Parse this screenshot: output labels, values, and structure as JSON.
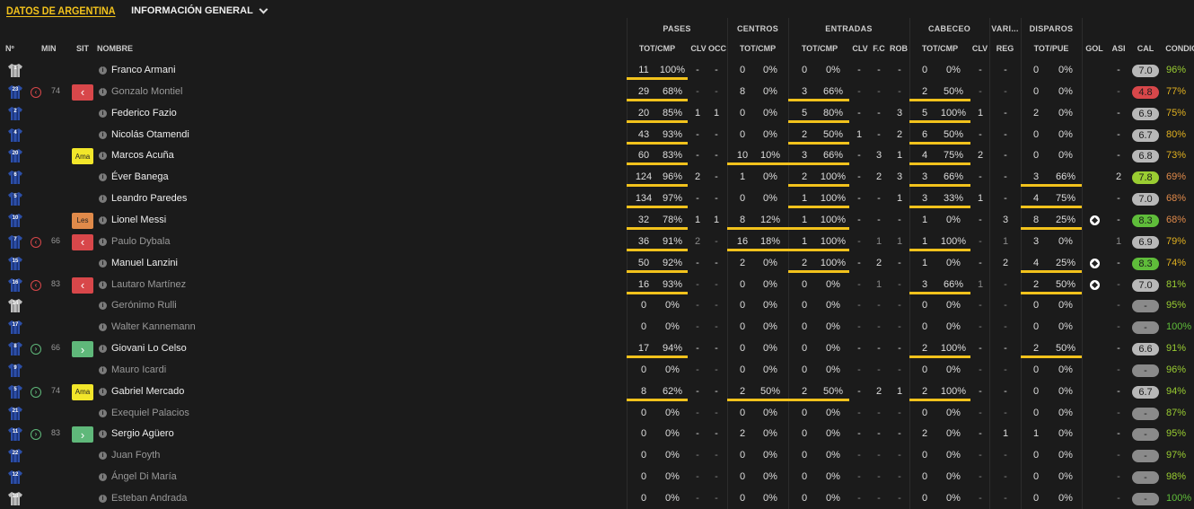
{
  "header": {
    "title": "DATOS DE ARGENTINA",
    "view": "INFORMACIÓN GENERAL"
  },
  "groups": [
    "PASES",
    "CENTROS",
    "ENTRADAS",
    "CABECEO",
    "VARI...",
    "DISPAROS"
  ],
  "columns": [
    "Nº",
    "MIN",
    "SIT",
    "NOMBRE",
    "TOT/CMP",
    "CLV",
    "OCC",
    "TOT/CMP",
    "TOT/CMP",
    "CLV",
    "F.C",
    "ROB",
    "TOT/CMP",
    "CLV",
    "REG",
    "TOT/PUE",
    "GOL",
    "ASI",
    "CAL",
    "CONDIC"
  ],
  "colors": {
    "accent": "#f2c21c",
    "sub_out": "#d8474a",
    "sub_in": "#5fb87a",
    "yellow_card": "#f2e62a",
    "injury": "#e08a4a"
  },
  "players": [
    {
      "num": "1",
      "kit": "gk",
      "name": "Franco Armani",
      "dim": false,
      "sub": "",
      "min": "",
      "sit": "",
      "pases": [
        "11",
        "100%"
      ],
      "pases_clv": "-",
      "pases_occ": "-",
      "cent": [
        "0",
        "0%"
      ],
      "ent": [
        "0",
        "0%"
      ],
      "ent_clv": "-",
      "ent_fc": "-",
      "ent_rob": "-",
      "cab": [
        "0",
        "0%"
      ],
      "cab_clv": "-",
      "reg": "-",
      "disp": [
        "0",
        "0%"
      ],
      "gol": "",
      "asi": "-",
      "cal": "7.0",
      "cal_color": "#b8b8b8",
      "cond": "96%",
      "cond_color": "#9acd32",
      "bars": {
        "pases": 1,
        "cent": 0,
        "ent": 0,
        "cab": 0,
        "disp": 0
      }
    },
    {
      "num": "23",
      "kit": "out",
      "name": "Gonzalo Montiel",
      "dim": true,
      "sub": "out",
      "min": "74",
      "sit": "out",
      "pases": [
        "29",
        "68%"
      ],
      "pases_clv": "-",
      "pases_occ": "-",
      "cent": [
        "8",
        "0%"
      ],
      "ent": [
        "3",
        "66%"
      ],
      "ent_clv": "-",
      "ent_fc": "-",
      "ent_rob": "-",
      "cab": [
        "2",
        "50%"
      ],
      "cab_clv": "-",
      "reg": "-",
      "disp": [
        "0",
        "0%"
      ],
      "gol": "",
      "asi": "-",
      "cal": "4.8",
      "cal_color": "#d8474a",
      "cond": "77%",
      "cond_color": "#e0b020",
      "bars": {
        "pases": 1,
        "cent": 0,
        "ent": 1,
        "cab": 1,
        "disp": 0
      }
    },
    {
      "num": "2",
      "kit": "out",
      "name": "Federico Fazio",
      "dim": false,
      "sub": "",
      "min": "",
      "sit": "",
      "pases": [
        "20",
        "85%"
      ],
      "pases_clv": "1",
      "pases_occ": "1",
      "cent": [
        "0",
        "0%"
      ],
      "ent": [
        "5",
        "80%"
      ],
      "ent_clv": "-",
      "ent_fc": "-",
      "ent_rob": "3",
      "cab": [
        "5",
        "100%"
      ],
      "cab_clv": "1",
      "reg": "-",
      "disp": [
        "2",
        "0%"
      ],
      "gol": "",
      "asi": "-",
      "cal": "6.9",
      "cal_color": "#b8b8b8",
      "cond": "75%",
      "cond_color": "#e0b020",
      "bars": {
        "pases": 1,
        "cent": 0,
        "ent": 1,
        "cab": 1,
        "disp": 0
      }
    },
    {
      "num": "4",
      "kit": "out",
      "name": "Nicolás Otamendi",
      "dim": false,
      "sub": "",
      "min": "",
      "sit": "",
      "pases": [
        "43",
        "93%"
      ],
      "pases_clv": "-",
      "pases_occ": "-",
      "cent": [
        "0",
        "0%"
      ],
      "ent": [
        "2",
        "50%"
      ],
      "ent_clv": "1",
      "ent_fc": "-",
      "ent_rob": "2",
      "cab": [
        "6",
        "50%"
      ],
      "cab_clv": "-",
      "reg": "-",
      "disp": [
        "0",
        "0%"
      ],
      "gol": "",
      "asi": "-",
      "cal": "6.7",
      "cal_color": "#b8b8b8",
      "cond": "80%",
      "cond_color": "#e0b020",
      "bars": {
        "pases": 1,
        "cent": 0,
        "ent": 1,
        "cab": 1,
        "disp": 0
      }
    },
    {
      "num": "20",
      "kit": "out",
      "name": "Marcos Acuña",
      "dim": false,
      "sub": "",
      "min": "",
      "sit": "ama",
      "sit_label": "Ama",
      "pases": [
        "60",
        "83%"
      ],
      "pases_clv": "-",
      "pases_occ": "-",
      "cent": [
        "10",
        "10%"
      ],
      "ent": [
        "3",
        "66%"
      ],
      "ent_clv": "-",
      "ent_fc": "3",
      "ent_rob": "1",
      "cab": [
        "4",
        "75%"
      ],
      "cab_clv": "2",
      "reg": "-",
      "disp": [
        "0",
        "0%"
      ],
      "gol": "",
      "asi": "-",
      "cal": "6.8",
      "cal_color": "#b8b8b8",
      "cond": "73%",
      "cond_color": "#e0b020",
      "bars": {
        "pases": 1,
        "cent": 1,
        "ent": 1,
        "cab": 1,
        "disp": 0
      }
    },
    {
      "num": "6",
      "kit": "out",
      "name": "Éver Banega",
      "dim": false,
      "sub": "",
      "min": "",
      "sit": "",
      "pases": [
        "124",
        "96%"
      ],
      "pases_clv": "2",
      "pases_occ": "-",
      "cent": [
        "1",
        "0%"
      ],
      "ent": [
        "2",
        "100%"
      ],
      "ent_clv": "-",
      "ent_fc": "2",
      "ent_rob": "3",
      "cab": [
        "3",
        "66%"
      ],
      "cab_clv": "-",
      "reg": "-",
      "disp": [
        "3",
        "66%"
      ],
      "gol": "",
      "asi": "2",
      "cal": "7.8",
      "cal_color": "#9acd32",
      "cond": "69%",
      "cond_color": "#e08a4a",
      "bars": {
        "pases": 1,
        "cent": 0,
        "ent": 1,
        "cab": 1,
        "disp": 1
      }
    },
    {
      "num": "5",
      "kit": "out",
      "name": "Leandro Paredes",
      "dim": false,
      "sub": "",
      "min": "",
      "sit": "",
      "pases": [
        "134",
        "97%"
      ],
      "pases_clv": "-",
      "pases_occ": "-",
      "cent": [
        "0",
        "0%"
      ],
      "ent": [
        "1",
        "100%"
      ],
      "ent_clv": "-",
      "ent_fc": "-",
      "ent_rob": "1",
      "cab": [
        "3",
        "33%"
      ],
      "cab_clv": "1",
      "reg": "-",
      "disp": [
        "4",
        "75%"
      ],
      "gol": "",
      "asi": "-",
      "cal": "7.0",
      "cal_color": "#b8b8b8",
      "cond": "68%",
      "cond_color": "#e08a4a",
      "bars": {
        "pases": 1,
        "cent": 0,
        "ent": 1,
        "cab": 1,
        "disp": 1
      }
    },
    {
      "num": "10",
      "kit": "out",
      "name": "Lionel Messi",
      "dim": false,
      "sub": "",
      "min": "",
      "sit": "les",
      "sit_label": "Les",
      "pases": [
        "32",
        "78%"
      ],
      "pases_clv": "1",
      "pases_occ": "1",
      "cent": [
        "8",
        "12%"
      ],
      "ent": [
        "1",
        "100%"
      ],
      "ent_clv": "-",
      "ent_fc": "-",
      "ent_rob": "-",
      "cab": [
        "1",
        "0%"
      ],
      "cab_clv": "-",
      "reg": "3",
      "disp": [
        "8",
        "25%"
      ],
      "gol": "ball",
      "asi": "-",
      "cal": "8.3",
      "cal_color": "#5fbd3a",
      "cond": "68%",
      "cond_color": "#e08a4a",
      "bars": {
        "pases": 1,
        "cent": 1,
        "ent": 1,
        "cab": 0,
        "disp": 1
      }
    },
    {
      "num": "7",
      "kit": "out",
      "name": "Paulo Dybala",
      "dim": true,
      "sub": "out",
      "min": "66",
      "sit": "out",
      "pases": [
        "36",
        "91%"
      ],
      "pases_clv": "2",
      "pases_occ": "-",
      "cent": [
        "16",
        "18%"
      ],
      "ent": [
        "1",
        "100%"
      ],
      "ent_clv": "-",
      "ent_fc": "1",
      "ent_rob": "1",
      "cab": [
        "1",
        "100%"
      ],
      "cab_clv": "-",
      "reg": "1",
      "disp": [
        "3",
        "0%"
      ],
      "gol": "",
      "asi": "1",
      "cal": "6.9",
      "cal_color": "#b8b8b8",
      "cond": "79%",
      "cond_color": "#e0b020",
      "bars": {
        "pases": 1,
        "cent": 1,
        "ent": 1,
        "cab": 1,
        "disp": 0
      }
    },
    {
      "num": "15",
      "kit": "out",
      "name": "Manuel Lanzini",
      "dim": false,
      "sub": "",
      "min": "",
      "sit": "",
      "pases": [
        "50",
        "92%"
      ],
      "pases_clv": "-",
      "pases_occ": "-",
      "cent": [
        "2",
        "0%"
      ],
      "ent": [
        "2",
        "100%"
      ],
      "ent_clv": "-",
      "ent_fc": "2",
      "ent_rob": "-",
      "cab": [
        "1",
        "0%"
      ],
      "cab_clv": "-",
      "reg": "2",
      "disp": [
        "4",
        "25%"
      ],
      "gol": "ball",
      "asi": "-",
      "cal": "8.3",
      "cal_color": "#5fbd3a",
      "cond": "74%",
      "cond_color": "#e0b020",
      "bars": {
        "pases": 1,
        "cent": 0,
        "ent": 1,
        "cab": 0,
        "disp": 1
      }
    },
    {
      "num": "16",
      "kit": "out",
      "name": "Lautaro Martínez",
      "dim": true,
      "sub": "out",
      "min": "83",
      "sit": "out",
      "pases": [
        "16",
        "93%"
      ],
      "pases_clv": "-",
      "pases_occ": "-",
      "cent": [
        "0",
        "0%"
      ],
      "ent": [
        "0",
        "0%"
      ],
      "ent_clv": "-",
      "ent_fc": "1",
      "ent_rob": "-",
      "cab": [
        "3",
        "66%"
      ],
      "cab_clv": "1",
      "reg": "-",
      "disp": [
        "2",
        "50%"
      ],
      "gol": "ball",
      "asi": "-",
      "cal": "7.0",
      "cal_color": "#b8b8b8",
      "cond": "81%",
      "cond_color": "#9acd32",
      "bars": {
        "pases": 1,
        "cent": 0,
        "ent": 0,
        "cab": 1,
        "disp": 1
      }
    },
    {
      "num": "14",
      "kit": "gk",
      "name": "Gerónimo Rulli",
      "dim": true,
      "sub": "",
      "min": "",
      "sit": "",
      "pases": [
        "0",
        "0%"
      ],
      "pases_clv": "-",
      "pases_occ": "-",
      "cent": [
        "0",
        "0%"
      ],
      "ent": [
        "0",
        "0%"
      ],
      "ent_clv": "-",
      "ent_fc": "-",
      "ent_rob": "-",
      "cab": [
        "0",
        "0%"
      ],
      "cab_clv": "-",
      "reg": "-",
      "disp": [
        "0",
        "0%"
      ],
      "gol": "",
      "asi": "-",
      "cal": "-",
      "cal_color": "#8a8a8a",
      "cond": "95%",
      "cond_color": "#9acd32",
      "bars": {
        "pases": 0,
        "cent": 0,
        "ent": 0,
        "cab": 0,
        "disp": 0
      }
    },
    {
      "num": "17",
      "kit": "out",
      "name": "Walter Kannemann",
      "dim": true,
      "sub": "",
      "min": "",
      "sit": "",
      "pases": [
        "0",
        "0%"
      ],
      "pases_clv": "-",
      "pases_occ": "-",
      "cent": [
        "0",
        "0%"
      ],
      "ent": [
        "0",
        "0%"
      ],
      "ent_clv": "-",
      "ent_fc": "-",
      "ent_rob": "-",
      "cab": [
        "0",
        "0%"
      ],
      "cab_clv": "-",
      "reg": "-",
      "disp": [
        "0",
        "0%"
      ],
      "gol": "",
      "asi": "-",
      "cal": "-",
      "cal_color": "#8a8a8a",
      "cond": "100%",
      "cond_color": "#5fbd3a",
      "bars": {
        "pases": 0,
        "cent": 0,
        "ent": 0,
        "cab": 0,
        "disp": 0
      }
    },
    {
      "num": "8",
      "kit": "out",
      "name": "Giovani Lo Celso",
      "dim": false,
      "sub": "in",
      "min": "66",
      "sit": "in",
      "pases": [
        "17",
        "94%"
      ],
      "pases_clv": "-",
      "pases_occ": "-",
      "cent": [
        "0",
        "0%"
      ],
      "ent": [
        "0",
        "0%"
      ],
      "ent_clv": "-",
      "ent_fc": "-",
      "ent_rob": "-",
      "cab": [
        "2",
        "100%"
      ],
      "cab_clv": "-",
      "reg": "-",
      "disp": [
        "2",
        "50%"
      ],
      "gol": "",
      "asi": "-",
      "cal": "6.6",
      "cal_color": "#b8b8b8",
      "cond": "91%",
      "cond_color": "#9acd32",
      "bars": {
        "pases": 1,
        "cent": 0,
        "ent": 0,
        "cab": 1,
        "disp": 1
      }
    },
    {
      "num": "9",
      "kit": "out",
      "name": "Mauro Icardi",
      "dim": true,
      "sub": "",
      "min": "",
      "sit": "",
      "pases": [
        "0",
        "0%"
      ],
      "pases_clv": "-",
      "pases_occ": "-",
      "cent": [
        "0",
        "0%"
      ],
      "ent": [
        "0",
        "0%"
      ],
      "ent_clv": "-",
      "ent_fc": "-",
      "ent_rob": "-",
      "cab": [
        "0",
        "0%"
      ],
      "cab_clv": "-",
      "reg": "-",
      "disp": [
        "0",
        "0%"
      ],
      "gol": "",
      "asi": "-",
      "cal": "-",
      "cal_color": "#8a8a8a",
      "cond": "96%",
      "cond_color": "#9acd32",
      "bars": {
        "pases": 0,
        "cent": 0,
        "ent": 0,
        "cab": 0,
        "disp": 0
      }
    },
    {
      "num": "5",
      "kit": "out",
      "name": "Gabriel Mercado",
      "dim": false,
      "sub": "in",
      "min": "74",
      "sit": "ama",
      "sit_label": "Ama",
      "pases": [
        "8",
        "62%"
      ],
      "pases_clv": "-",
      "pases_occ": "-",
      "cent": [
        "2",
        "50%"
      ],
      "ent": [
        "2",
        "50%"
      ],
      "ent_clv": "-",
      "ent_fc": "2",
      "ent_rob": "1",
      "cab": [
        "2",
        "100%"
      ],
      "cab_clv": "-",
      "reg": "-",
      "disp": [
        "0",
        "0%"
      ],
      "gol": "",
      "asi": "-",
      "cal": "6.7",
      "cal_color": "#b8b8b8",
      "cond": "94%",
      "cond_color": "#9acd32",
      "bars": {
        "pases": 1,
        "cent": 1,
        "ent": 1,
        "cab": 1,
        "disp": 0
      }
    },
    {
      "num": "21",
      "kit": "out",
      "name": "Exequiel Palacios",
      "dim": true,
      "sub": "",
      "min": "",
      "sit": "",
      "pases": [
        "0",
        "0%"
      ],
      "pases_clv": "-",
      "pases_occ": "-",
      "cent": [
        "0",
        "0%"
      ],
      "ent": [
        "0",
        "0%"
      ],
      "ent_clv": "-",
      "ent_fc": "-",
      "ent_rob": "-",
      "cab": [
        "0",
        "0%"
      ],
      "cab_clv": "-",
      "reg": "-",
      "disp": [
        "0",
        "0%"
      ],
      "gol": "",
      "asi": "-",
      "cal": "-",
      "cal_color": "#8a8a8a",
      "cond": "87%",
      "cond_color": "#9acd32",
      "bars": {
        "pases": 0,
        "cent": 0,
        "ent": 0,
        "cab": 0,
        "disp": 0
      }
    },
    {
      "num": "11",
      "kit": "out",
      "name": "Sergio Agüero",
      "dim": false,
      "sub": "in",
      "min": "83",
      "sit": "in",
      "pases": [
        "0",
        "0%"
      ],
      "pases_clv": "-",
      "pases_occ": "-",
      "cent": [
        "2",
        "0%"
      ],
      "ent": [
        "0",
        "0%"
      ],
      "ent_clv": "-",
      "ent_fc": "-",
      "ent_rob": "-",
      "cab": [
        "2",
        "0%"
      ],
      "cab_clv": "-",
      "reg": "1",
      "disp": [
        "1",
        "0%"
      ],
      "gol": "",
      "asi": "-",
      "cal": "-",
      "cal_color": "#8a8a8a",
      "cond": "95%",
      "cond_color": "#9acd32",
      "bars": {
        "pases": 0,
        "cent": 0,
        "ent": 0,
        "cab": 0,
        "disp": 0
      }
    },
    {
      "num": "22",
      "kit": "out",
      "name": "Juan Foyth",
      "dim": true,
      "sub": "",
      "min": "",
      "sit": "",
      "pases": [
        "0",
        "0%"
      ],
      "pases_clv": "-",
      "pases_occ": "-",
      "cent": [
        "0",
        "0%"
      ],
      "ent": [
        "0",
        "0%"
      ],
      "ent_clv": "-",
      "ent_fc": "-",
      "ent_rob": "-",
      "cab": [
        "0",
        "0%"
      ],
      "cab_clv": "-",
      "reg": "-",
      "disp": [
        "0",
        "0%"
      ],
      "gol": "",
      "asi": "-",
      "cal": "-",
      "cal_color": "#8a8a8a",
      "cond": "97%",
      "cond_color": "#9acd32",
      "bars": {
        "pases": 0,
        "cent": 0,
        "ent": 0,
        "cab": 0,
        "disp": 0
      }
    },
    {
      "num": "12",
      "kit": "out",
      "name": "Ángel Di María",
      "dim": true,
      "sub": "",
      "min": "",
      "sit": "",
      "pases": [
        "0",
        "0%"
      ],
      "pases_clv": "-",
      "pases_occ": "-",
      "cent": [
        "0",
        "0%"
      ],
      "ent": [
        "0",
        "0%"
      ],
      "ent_clv": "-",
      "ent_fc": "-",
      "ent_rob": "-",
      "cab": [
        "0",
        "0%"
      ],
      "cab_clv": "-",
      "reg": "-",
      "disp": [
        "0",
        "0%"
      ],
      "gol": "",
      "asi": "-",
      "cal": "-",
      "cal_color": "#8a8a8a",
      "cond": "98%",
      "cond_color": "#9acd32",
      "bars": {
        "pases": 0,
        "cent": 0,
        "ent": 0,
        "cab": 0,
        "disp": 0
      }
    },
    {
      "num": "18",
      "kit": "gk",
      "name": "Esteban Andrada",
      "dim": true,
      "sub": "",
      "min": "",
      "sit": "",
      "pases": [
        "0",
        "0%"
      ],
      "pases_clv": "-",
      "pases_occ": "-",
      "cent": [
        "0",
        "0%"
      ],
      "ent": [
        "0",
        "0%"
      ],
      "ent_clv": "-",
      "ent_fc": "-",
      "ent_rob": "-",
      "cab": [
        "0",
        "0%"
      ],
      "cab_clv": "-",
      "reg": "-",
      "disp": [
        "0",
        "0%"
      ],
      "gol": "",
      "asi": "-",
      "cal": "-",
      "cal_color": "#8a8a8a",
      "cond": "100%",
      "cond_color": "#5fbd3a",
      "bars": {
        "pases": 0,
        "cent": 0,
        "ent": 0,
        "cab": 0,
        "disp": 0
      }
    }
  ]
}
